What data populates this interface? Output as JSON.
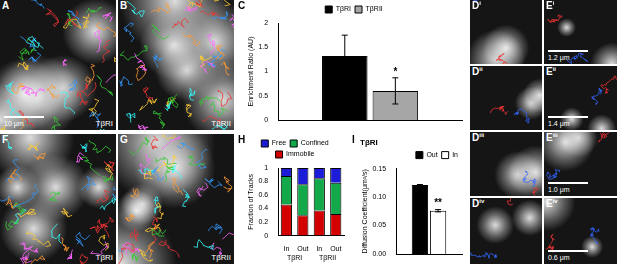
{
  "panels": [
    {
      "label": "A",
      "text": "TβRI",
      "scale_bar": "10 μm"
    },
    {
      "label": "B",
      "text": "TβRII"
    },
    {
      "label": "C"
    },
    {
      "label": "D",
      "index": "i"
    },
    {
      "label": "D",
      "index": "ii"
    },
    {
      "label": "D",
      "index": "iii"
    },
    {
      "label": "D",
      "index": "iv"
    },
    {
      "label": "E",
      "index": "i",
      "scale_bar": "1.2 μm"
    },
    {
      "label": "E",
      "index": "ii",
      "scale_bar": "1.4 μm"
    },
    {
      "label": "E",
      "index": "iii",
      "scale_bar": "1.0 μm"
    },
    {
      "label": "E",
      "index": "iv",
      "scale_bar": "0.6 μm"
    },
    {
      "label": "F",
      "text": "TβRI"
    },
    {
      "label": "G",
      "text": "TβRII"
    },
    {
      "label": "H"
    },
    {
      "label": "I"
    }
  ],
  "chart_data": [
    {
      "type": "bar",
      "ylabel": "Enrichment Ratio (AU)",
      "categories": [
        null
      ],
      "series": [
        {
          "name": "TβRI",
          "color": "#000000",
          "values": [
            1.32
          ],
          "errors": [
            0.43
          ]
        },
        {
          "name": "TβRII",
          "color": "#a6a6a6",
          "values": [
            0.6
          ],
          "errors": [
            0.27
          ]
        }
      ],
      "annotations": [
        {
          "text": "*",
          "series": 1
        }
      ],
      "ylim": [
        0,
        2
      ],
      "yticks": [
        0,
        0.5,
        1,
        1.5,
        2
      ],
      "grid": false,
      "legend": "top",
      "tick_labels": "y"
    },
    {
      "type": "bar",
      "ylabel": "Fraction of Tracks",
      "categories": [
        "In",
        "Out",
        "In",
        "Out"
      ],
      "groups": [
        "TβRI",
        "TβRI",
        "TβRII",
        "TβRII"
      ],
      "series": [
        {
          "name": "Immobile",
          "color": "#d40000",
          "values": [
            0.46,
            0.3,
            0.37,
            0.32
          ]
        },
        {
          "name": "Confined",
          "color": "#13a84a",
          "values": [
            0.42,
            0.46,
            0.48,
            0.46
          ]
        },
        {
          "name": "Free",
          "color": "#1c1cd8",
          "values": [
            0.12,
            0.24,
            0.15,
            0.22
          ]
        }
      ],
      "ylim": [
        0,
        1
      ],
      "yticks": [
        0,
        0.2,
        0.4,
        0.6,
        0.8,
        1
      ],
      "stacked": true,
      "grid": false,
      "legend": "top"
    },
    {
      "type": "bar",
      "title": "TβRI",
      "ylabel": "Diffusion Coefficient(μm²/s)",
      "categories": [
        null
      ],
      "series": [
        {
          "name": "Out",
          "color": "#000000",
          "values": [
            0.121
          ],
          "errors": [
            0.001
          ]
        },
        {
          "name": "In",
          "color": "#ffffff",
          "values": [
            0.076
          ],
          "errors": [
            0.002
          ]
        }
      ],
      "annotations": [
        {
          "text": "**",
          "series": 1
        }
      ],
      "ylim": [
        0,
        0.15
      ],
      "yticks": [
        {
          "value": 0,
          "label": "0.00"
        },
        {
          "value": 0.05,
          "label": "0.05"
        },
        {
          "value": 0.1,
          "label": "0.10"
        },
        {
          "value": 0.15,
          "label": "0.15"
        }
      ],
      "grid": false,
      "legend": "top-right",
      "tick_labels": "y"
    }
  ]
}
